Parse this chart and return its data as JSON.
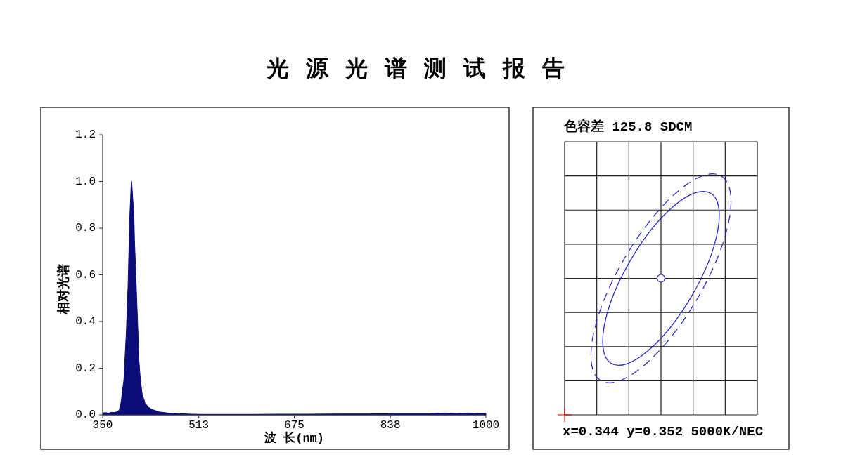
{
  "chart_data": [
    {
      "type": "area",
      "title": "光源光谱测试报告",
      "xlabel": "波 长(nm)",
      "ylabel": "相对光谱",
      "x": [
        350,
        355,
        360,
        365,
        370,
        374,
        378,
        381,
        386,
        388,
        390,
        393,
        395,
        396,
        398,
        399,
        400,
        403,
        404,
        407,
        410,
        411,
        414,
        417,
        422,
        428,
        434,
        445,
        460,
        480,
        500,
        520,
        550,
        600,
        650,
        700,
        750,
        800,
        850,
        900,
        930,
        950,
        970,
        985,
        1000
      ],
      "values": [
        0.008,
        0.01,
        0.007,
        0.011,
        0.01,
        0.013,
        0.02,
        0.05,
        0.15,
        0.25,
        0.35,
        0.55,
        0.75,
        0.85,
        0.97,
        1.0,
        0.97,
        0.85,
        0.75,
        0.55,
        0.35,
        0.25,
        0.15,
        0.09,
        0.05,
        0.032,
        0.023,
        0.013,
        0.008,
        0.005,
        0.003,
        0.002,
        0.002,
        0.002,
        0.003,
        0.003,
        0.004,
        0.004,
        0.005,
        0.005,
        0.008,
        0.006,
        0.008,
        0.006,
        0.006
      ],
      "color": "#0b0b7a",
      "xlim": [
        350,
        1000
      ],
      "xticks": [
        350,
        513,
        675,
        838,
        1000
      ],
      "ylim": [
        0,
        1.2
      ],
      "yticks": [
        {
          "value": 0,
          "label": "0.0"
        },
        {
          "value": 0.2,
          "label": "0.2"
        },
        {
          "value": 0.4,
          "label": "0.4"
        },
        {
          "value": 0.6,
          "label": "0.6"
        },
        {
          "value": 0.8,
          "label": "0.8"
        },
        {
          "value": 1.0,
          "label": "1.0"
        },
        {
          "value": 1.2,
          "label": "1.2"
        }
      ]
    },
    {
      "type": "other",
      "title": "色容差 125.8 SDCM",
      "annotations": [
        "x=0.344 y=0.352 5000K/NEC"
      ]
    }
  ]
}
